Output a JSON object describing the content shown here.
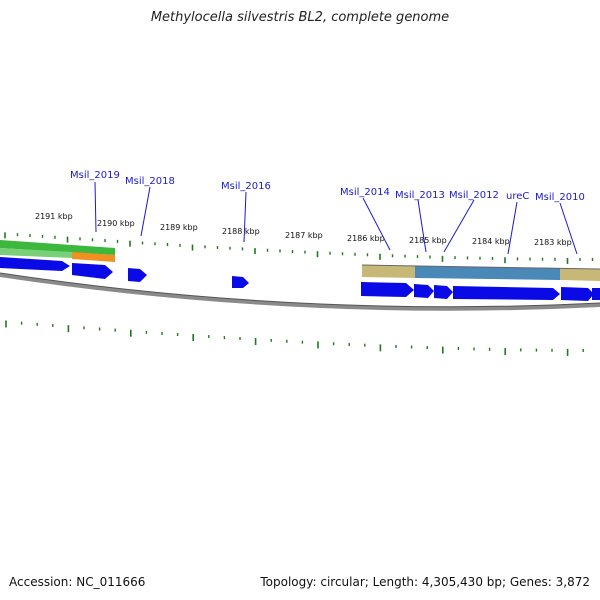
{
  "title": "Methylocella silvestris BL2, complete genome",
  "accession": "Accession: NC_011666",
  "summary": "Topology: circular; Length: 4,305,430 bp; Genes: 3,872",
  "kbp_labels": [
    "2191 kbp",
    "2190 kbp",
    "2189 kbp",
    "2188 kbp",
    "2187 kbp",
    "2186 kbp",
    "2185 kbp",
    "2184 kbp",
    "2183 kbp"
  ],
  "gene_labels": [
    "Msil_2019",
    "Msil_2018",
    "Msil_2016",
    "Msil_2014",
    "Msil_2013",
    "Msil_2012",
    "ureC",
    "Msil_2010"
  ],
  "colors": {
    "gene": "#0a0ae6",
    "backbone": "#8a8a8a",
    "tick": "#1f7a1f",
    "label": "#1a1acc",
    "cog_green": "#3cb83c",
    "cog_orange": "#f09020",
    "cog_khaki": "#c8b878",
    "cog_steel": "#4a88b8"
  }
}
